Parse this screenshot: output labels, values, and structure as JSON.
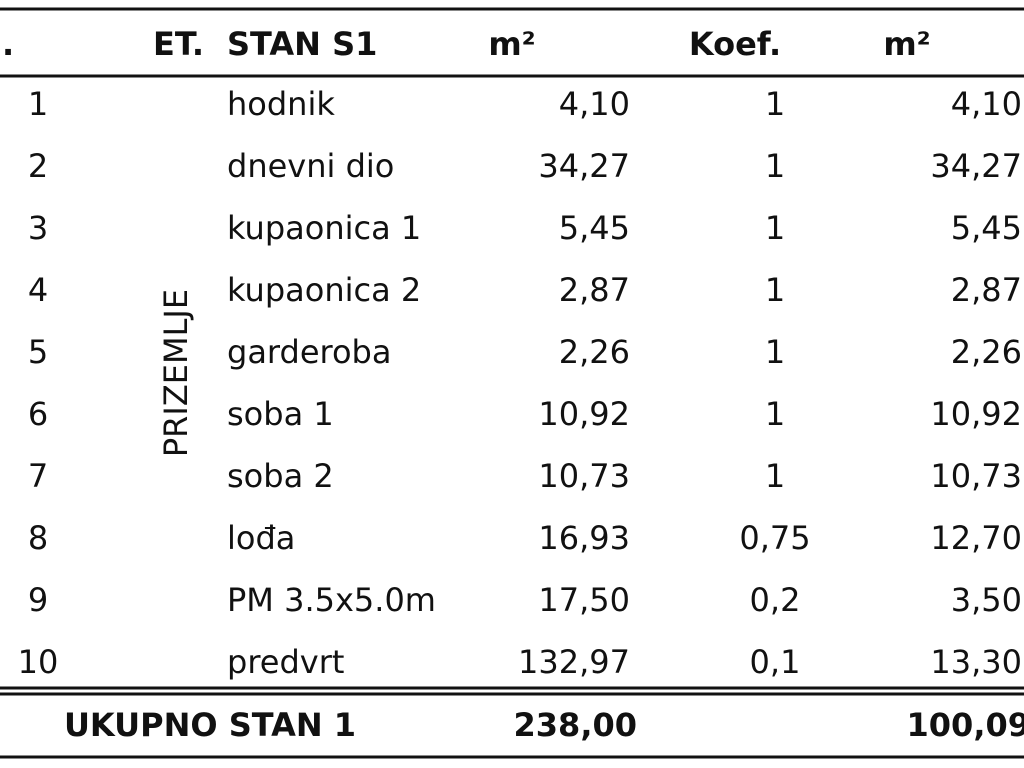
{
  "table": {
    "header": [
      ".",
      "ET.",
      "STAN S1",
      "m²",
      "Koef.",
      "m²"
    ],
    "floor_label": "PRIZEMLJE",
    "rows": [
      [
        "1",
        "hodnik",
        "4,10",
        "1",
        "4,10"
      ],
      [
        "2",
        "dnevni dio",
        "34,27",
        "1",
        "34,27"
      ],
      [
        "3",
        "kupaonica 1",
        "5,45",
        "1",
        "5,45"
      ],
      [
        "4",
        "kupaonica 2",
        "2,87",
        "1",
        "2,87"
      ],
      [
        "5",
        "garderoba",
        "2,26",
        "1",
        "2,26"
      ],
      [
        "6",
        "soba 1",
        "10,92",
        "1",
        "10,92"
      ],
      [
        "7",
        "soba 2",
        "10,73",
        "1",
        "10,73"
      ],
      [
        "8",
        "lođa",
        "16,93",
        "0,75",
        "12,70"
      ],
      [
        "9",
        "PM  3.5x5.0m",
        "17,50",
        "0,2",
        "3,50"
      ],
      [
        "10",
        "predvrt",
        "132,97",
        "0,1",
        "13,30"
      ]
    ],
    "total": {
      "label": "UKUPNO STAN 1",
      "area": "238,00",
      "area2": "100,09"
    }
  }
}
